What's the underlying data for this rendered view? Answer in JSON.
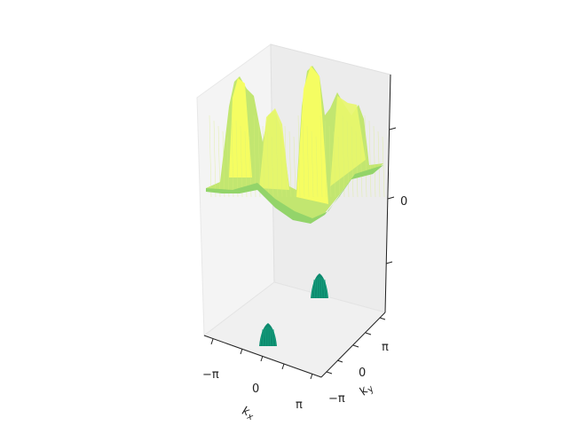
{
  "chart_data": {
    "type": "surface3d",
    "title": "",
    "xlabel": "k_x",
    "ylabel": "k_y",
    "zlabel": "",
    "x_ticks": [
      "−π",
      "0",
      "π"
    ],
    "y_ticks": [
      "−π",
      "0",
      "π"
    ],
    "z_ticks": [
      "0"
    ],
    "x_range": [
      -3.14159,
      3.14159
    ],
    "y_range": [
      -3.14159,
      3.14159
    ],
    "upper_band": {
      "name": "",
      "colormap": "yellow-green",
      "colors": [
        "#93d46a",
        "#c2e670",
        "#e9f76b",
        "#fbff60"
      ],
      "description_peaks": 4
    },
    "lower_band": {
      "name": "",
      "color": "#0d8a6e",
      "peaks_at_k": [
        [
          0,
          0
        ],
        [
          3.14159,
          3.14159
        ]
      ]
    },
    "grid": false
  }
}
